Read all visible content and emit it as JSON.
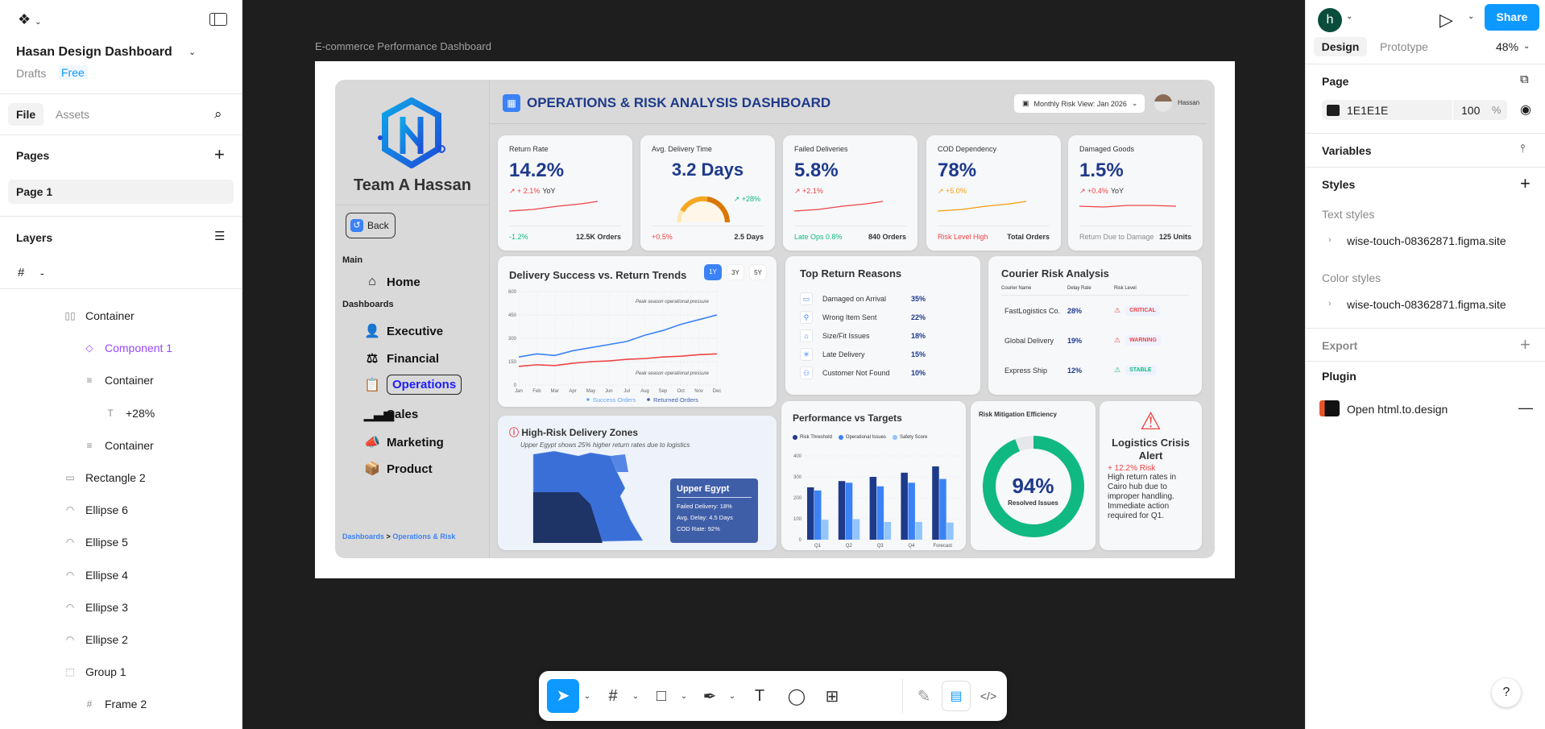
{
  "left_panel": {
    "file_name": "Hasan Design Dashboard",
    "drafts": "Drafts",
    "plan": "Free",
    "tabs": [
      "File",
      "Assets"
    ],
    "pages_title": "Pages",
    "page": "Page 1",
    "layers_title": "Layers",
    "root_layer": "-",
    "layers": [
      {
        "name": "Container",
        "icon": "auto-layout-icon"
      },
      {
        "name": "Component 1",
        "icon": "component-icon"
      },
      {
        "name": "Container",
        "icon": "frame-align-icon"
      },
      {
        "name": "+28%",
        "icon": "text-icon"
      },
      {
        "name": "Container",
        "icon": "frame-align-icon"
      },
      {
        "name": "Rectangle 2",
        "icon": "rectangle-icon"
      },
      {
        "name": "Ellipse 6",
        "icon": "ellipse-icon"
      },
      {
        "name": "Ellipse 5",
        "icon": "ellipse-icon"
      },
      {
        "name": "Ellipse 4",
        "icon": "ellipse-icon"
      },
      {
        "name": "Ellipse 3",
        "icon": "ellipse-icon"
      },
      {
        "name": "Ellipse 2",
        "icon": "ellipse-icon"
      },
      {
        "name": "Group 1",
        "icon": "group-icon"
      },
      {
        "name": "Frame 2",
        "icon": "frame-icon"
      }
    ]
  },
  "canvas": {
    "frame_label": "E-commerce Performance Dashboard"
  },
  "dashboard": {
    "brand": "Team A Hassan",
    "back": "Back",
    "main_label": "Main",
    "dashboards_label": "Dashboards",
    "nav": [
      "Home",
      "Executive",
      "Financial",
      "Operations",
      "Sales",
      "Marketing",
      "Product"
    ],
    "breadcrumb": {
      "root": "Dashboards",
      "sep": ">",
      "current": "Operations & Risk"
    },
    "title": "OPERATIONS & RISK ANALYSIS DASHBOARD",
    "date_filter": "Monthly Risk View: Jan 2026",
    "user": "Hassan",
    "kpis": [
      {
        "title": "Return Rate",
        "value": "14.2%",
        "delta": "+ 2.1%",
        "delta_suffix": "YoY",
        "foot_left": "-1.2%",
        "foot_right": "12.5K Orders"
      },
      {
        "title": "Avg. Delivery Time",
        "value": "3.2 Days",
        "delta": "+28%",
        "delta_suffix": "",
        "foot_left": "+0.5%",
        "foot_right": "2.5 Days"
      },
      {
        "title": "Failed Deliveries",
        "value": "5.8%",
        "delta": "+2.1%",
        "delta_suffix": "",
        "foot_left": "Late Ops 0.8%",
        "foot_right": "840 Orders"
      },
      {
        "title": "COD Dependency",
        "value": "78%",
        "delta": "+5.0%",
        "delta_suffix": "",
        "foot_left": "Risk Level High",
        "foot_right": "Total Orders"
      },
      {
        "title": "Damaged Goods",
        "value": "1.5%",
        "delta": "+0.4%",
        "delta_suffix": "YoY",
        "foot_left": "Return Due to Damage",
        "foot_right": "125 Units"
      }
    ],
    "return_reasons": {
      "title": "Top Return Reasons",
      "items": [
        {
          "label": "Damaged on Arrival",
          "value": "35%"
        },
        {
          "label": "Wrong Item Sent",
          "value": "22%"
        },
        {
          "label": "Size/Fit Issues",
          "value": "18%"
        },
        {
          "label": "Late Delivery",
          "value": "15%"
        },
        {
          "label": "Customer Not Found",
          "value": "10%"
        }
      ]
    },
    "courier": {
      "title": "Courier Risk Analysis",
      "headers": [
        "Courier Name",
        "Delay Rate",
        "Risk Level"
      ],
      "rows": [
        {
          "name": "FastLogistics Co.",
          "rate": "28%",
          "risk": "CRITICAL",
          "color": "#ef4444"
        },
        {
          "name": "Global Delivery",
          "rate": "19%",
          "risk": "WARNING",
          "color": "#ef4444"
        },
        {
          "name": "Express Ship",
          "rate": "12%",
          "risk": "STABLE",
          "color": "#10b981"
        }
      ]
    },
    "zones": {
      "title": "High-Risk Delivery Zones",
      "subtitle": "Upper Egypt shows 25% higher return rates due to logistics",
      "tooltip": {
        "title": "Upper Egypt",
        "lines": [
          "Failed Delivery: 18%",
          "Avg. Delay: 4.5 Days",
          "COD Rate: 92%"
        ]
      }
    },
    "mitigation": {
      "title": "Risk Mitigation Efficiency",
      "value": "94%",
      "label": "Resolved Issues",
      "percent": 94
    },
    "alert": {
      "title": "Logistics Crisis Alert",
      "risk": "+ 12.2% Risk",
      "body": "High return rates in Cairo hub due to improper handling. Immediate action required for Q1."
    }
  },
  "chart_data": [
    {
      "type": "line",
      "title": "Delivery Success vs. Return Trends",
      "ranges": [
        "1Y",
        "3Y",
        "5Y"
      ],
      "active_range": "1Y",
      "x": [
        "Jan",
        "Feb",
        "Mar",
        "Apr",
        "May",
        "Jun",
        "Jul",
        "Aug",
        "Sep",
        "Oct",
        "Nov",
        "Dec"
      ],
      "series": [
        {
          "name": "Success Orders",
          "color": "#3b82f6",
          "values": [
            180,
            200,
            190,
            220,
            240,
            260,
            280,
            320,
            350,
            390,
            420,
            450
          ]
        },
        {
          "name": "Returned Orders",
          "color": "#ef4444",
          "values": [
            120,
            130,
            125,
            140,
            150,
            155,
            165,
            170,
            180,
            185,
            195,
            200
          ]
        }
      ],
      "yticks": [
        0,
        150,
        300,
        450,
        600
      ],
      "ylim": [
        0,
        600
      ],
      "annotations": [
        "Peak season operational pressure",
        "Peak season operational pressure"
      ],
      "legend": "bottom-right"
    },
    {
      "type": "bar",
      "title": "Performance vs Targets",
      "categories": [
        "Q1",
        "Q2",
        "Q3",
        "Q4",
        "Forecast"
      ],
      "series": [
        {
          "name": "Risk Threshold",
          "color": "#1e3a8a",
          "values": [
            250,
            280,
            300,
            320,
            350
          ]
        },
        {
          "name": "Operational Issues",
          "color": "#3b82f6",
          "values": [
            235,
            272,
            255,
            272,
            290
          ]
        },
        {
          "name": "Safety Score",
          "color": "#93c5fd",
          "values": [
            95,
            98,
            85,
            85,
            82
          ]
        }
      ],
      "yticks": [
        0,
        100,
        200,
        300,
        400
      ],
      "ylim": [
        0,
        400
      ],
      "legend": "top"
    }
  ],
  "right_panel": {
    "avatar_letter": "h",
    "share": "Share",
    "tabs": [
      "Design",
      "Prototype"
    ],
    "zoom": "48%",
    "page_title": "Page",
    "page_color": "1E1E1E",
    "page_opacity": "100",
    "pct": "%",
    "variables": "Variables",
    "styles": "Styles",
    "text_styles": "Text styles",
    "text_style_item": "wise-touch-08362871.figma.site",
    "color_styles": "Color styles",
    "color_style_item": "wise-touch-08362871.figma.site",
    "export": "Export",
    "plugin": "Plugin",
    "plugin_item": "Open html.to.design"
  },
  "help": "?"
}
